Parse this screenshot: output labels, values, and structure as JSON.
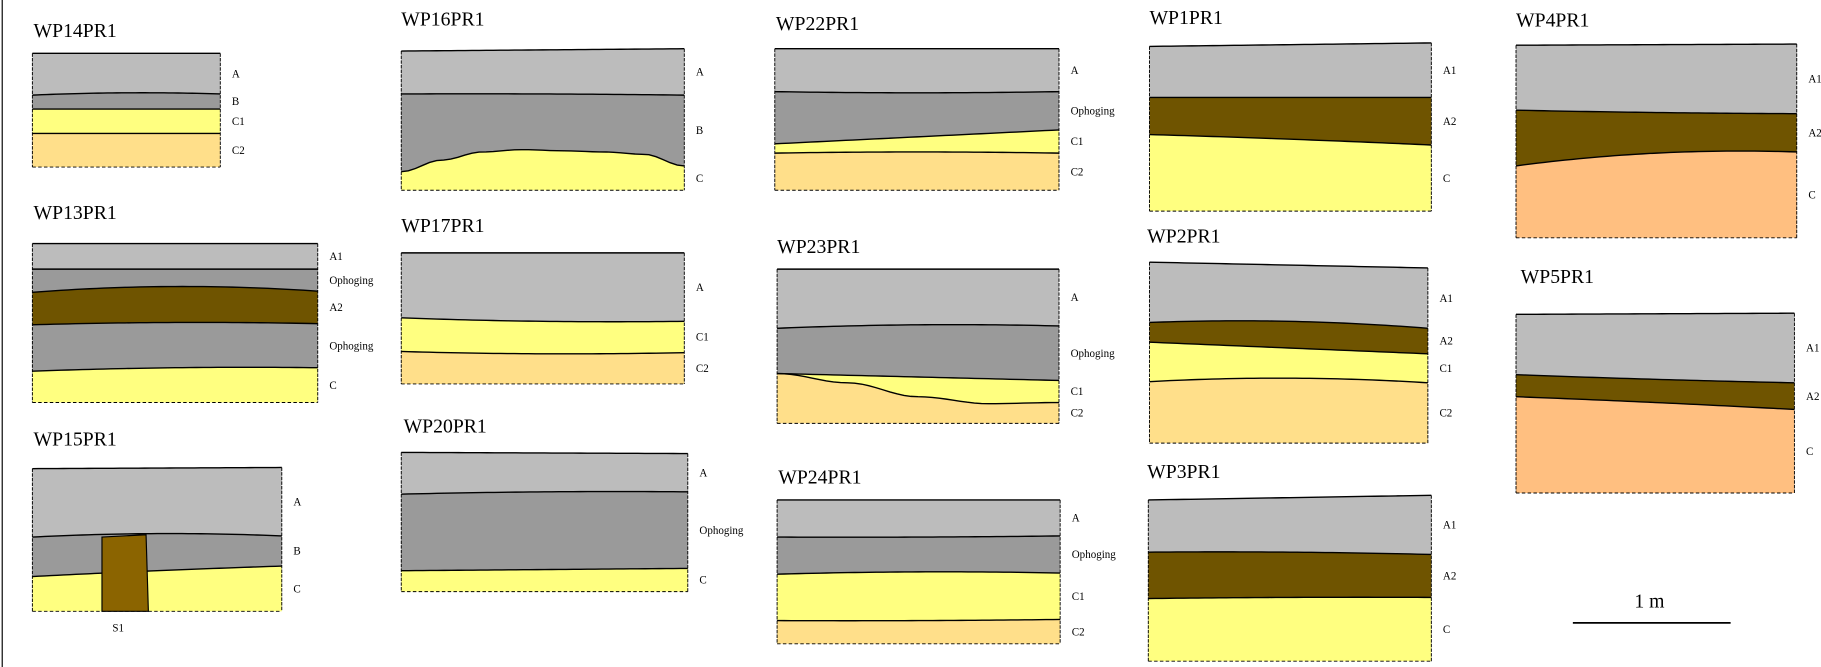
{
  "profiles": [
    {
      "title": "WP14PR1",
      "layers": [
        "A",
        "B",
        "C1",
        "C2"
      ]
    },
    {
      "title": "WP13PR1",
      "layers": [
        "A1",
        "Ophoging",
        "A2",
        "Ophoging",
        "C"
      ]
    },
    {
      "title": "WP15PR1",
      "layers": [
        "A",
        "B",
        "C"
      ]
    },
    {
      "title": "WP16PR1",
      "layers": [
        "A",
        "B",
        "C"
      ]
    },
    {
      "title": "WP17PR1",
      "layers": [
        "A",
        "C1",
        "C2"
      ]
    },
    {
      "title": "WP20PR1",
      "layers": [
        "A",
        "Ophoging",
        "C"
      ]
    },
    {
      "title": "WP22PR1",
      "layers": [
        "A",
        "Ophoging",
        "C1",
        "C2"
      ]
    },
    {
      "title": "WP23PR1",
      "layers": [
        "A",
        "Ophoging",
        "C1",
        "C2"
      ]
    },
    {
      "title": "WP24PR1",
      "layers": [
        "A",
        "Ophoging",
        "C1",
        "C2"
      ]
    },
    {
      "title": "WP1PR1",
      "layers": [
        "A1",
        "A2",
        "C"
      ]
    },
    {
      "title": "WP2PR1",
      "layers": [
        "A1",
        "A2",
        "C1",
        "C2"
      ]
    },
    {
      "title": "WP3PR1",
      "layers": [
        "A1",
        "A2",
        "C"
      ]
    },
    {
      "title": "WP4PR1",
      "layers": [
        "A1",
        "A2",
        "C"
      ]
    },
    {
      "title": "WP5PR1",
      "layers": [
        "A1",
        "A2",
        "C"
      ]
    }
  ],
  "feature_label": "S1",
  "scale_label": "1 m"
}
